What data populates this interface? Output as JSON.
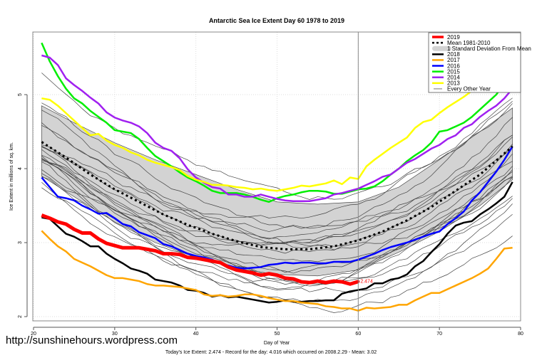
{
  "chart_data": {
    "type": "line",
    "title": "Antarctic Sea Ice Extent Day 60 1978 to 2019",
    "xlabel": "Day of Year",
    "ylabel": "Ice Extent in millions of sq. km.",
    "xlim": [
      20,
      80
    ],
    "ylim": [
      1.95,
      5.8
    ],
    "x_ticks": [
      20,
      30,
      40,
      50,
      60,
      70,
      80
    ],
    "y_ticks": [
      2,
      3,
      4,
      5
    ],
    "grid": true,
    "vline_day": 60,
    "legend_position": "top-right",
    "legend": [
      {
        "label": "2019",
        "color": "#ff0000",
        "style": "thick"
      },
      {
        "label": "Mean 1981-2010",
        "color": "#000000",
        "style": "dashed"
      },
      {
        "label": "1 Standard Deviation From Mean",
        "color": "#d3d3d3",
        "style": "band"
      },
      {
        "label": "2018",
        "color": "#000000",
        "style": "line"
      },
      {
        "label": "2017",
        "color": "#ffa500",
        "style": "line"
      },
      {
        "label": "2016",
        "color": "#0000ff",
        "style": "line"
      },
      {
        "label": "2015",
        "color": "#00ee00",
        "style": "line"
      },
      {
        "label": "2014",
        "color": "#a020f0",
        "style": "line"
      },
      {
        "label": "2013",
        "color": "#ffff00",
        "style": "line"
      },
      {
        "label": "Every Other Year",
        "color": "#555555",
        "style": "thin"
      }
    ],
    "annotation": {
      "text": "2.474",
      "day": 60,
      "value": 2.474,
      "color": "#ff0000"
    },
    "band": {
      "name": "1 Standard Deviation From Mean",
      "x": [
        21,
        25,
        30,
        35,
        40,
        45,
        50,
        55,
        60,
        65,
        70,
        75,
        79
      ],
      "upper": [
        4.85,
        4.62,
        4.35,
        4.12,
        3.92,
        3.72,
        3.55,
        3.52,
        3.55,
        3.75,
        4.12,
        4.5,
        4.82
      ],
      "lower": [
        3.9,
        3.62,
        3.28,
        3.0,
        2.8,
        2.65,
        2.57,
        2.55,
        2.63,
        2.87,
        3.15,
        3.5,
        3.85
      ]
    },
    "series": [
      {
        "name": "Mean 1981-2010",
        "color": "#000000",
        "style": "dashed",
        "x": [
          21,
          24,
          27,
          30,
          33,
          36,
          39,
          42,
          45,
          48,
          51,
          54,
          57,
          60,
          63,
          66,
          69,
          72,
          75,
          79
        ],
        "values": [
          4.36,
          4.15,
          3.92,
          3.72,
          3.55,
          3.38,
          3.24,
          3.12,
          3.02,
          2.94,
          2.91,
          2.91,
          2.95,
          3.03,
          3.15,
          3.3,
          3.48,
          3.7,
          3.92,
          4.3
        ]
      },
      {
        "name": "2018",
        "color": "#000000",
        "style": "line",
        "x": [
          21,
          22,
          23,
          24,
          25,
          26,
          27,
          28,
          29,
          30,
          31,
          32,
          33,
          34,
          35,
          36,
          37,
          38,
          39,
          40,
          41,
          42,
          43,
          44,
          45,
          46,
          47,
          48,
          49,
          50,
          51,
          52,
          53,
          54,
          55,
          56,
          57,
          58,
          59,
          60,
          61,
          62,
          63,
          64,
          65,
          66,
          67,
          68,
          69,
          70,
          71,
          72,
          73,
          74,
          75,
          76,
          77,
          78,
          79
        ],
        "values": [
          3.34,
          3.32,
          3.22,
          3.12,
          3.08,
          3.02,
          2.95,
          2.95,
          2.85,
          2.78,
          2.72,
          2.65,
          2.62,
          2.58,
          2.5,
          2.48,
          2.46,
          2.42,
          2.36,
          2.35,
          2.32,
          2.27,
          2.29,
          2.26,
          2.27,
          2.25,
          2.23,
          2.21,
          2.19,
          2.2,
          2.22,
          2.2,
          2.2,
          2.21,
          2.21,
          2.22,
          2.22,
          2.31,
          2.34,
          2.36,
          2.38,
          2.45,
          2.45,
          2.5,
          2.52,
          2.57,
          2.68,
          2.75,
          2.87,
          2.98,
          3.12,
          3.23,
          3.27,
          3.29,
          3.38,
          3.45,
          3.53,
          3.62,
          3.82
        ]
      },
      {
        "name": "2017",
        "color": "#ffa500",
        "style": "line",
        "x": [
          21,
          22,
          23,
          24,
          25,
          26,
          27,
          28,
          29,
          30,
          31,
          32,
          33,
          34,
          35,
          36,
          37,
          38,
          39,
          40,
          41,
          42,
          43,
          44,
          45,
          46,
          47,
          48,
          49,
          50,
          51,
          52,
          53,
          54,
          55,
          56,
          57,
          58,
          59,
          60,
          61,
          62,
          63,
          64,
          65,
          66,
          67,
          68,
          69,
          70,
          71,
          72,
          73,
          74,
          75,
          76,
          77,
          78,
          79
        ],
        "values": [
          3.16,
          3.05,
          2.95,
          2.88,
          2.78,
          2.73,
          2.68,
          2.62,
          2.56,
          2.52,
          2.52,
          2.5,
          2.48,
          2.44,
          2.42,
          2.42,
          2.41,
          2.4,
          2.38,
          2.36,
          2.3,
          2.28,
          2.29,
          2.27,
          2.28,
          2.3,
          2.3,
          2.28,
          2.25,
          2.23,
          2.21,
          2.21,
          2.19,
          2.18,
          2.17,
          2.14,
          2.13,
          2.11,
          2.11,
          2.08,
          2.12,
          2.11,
          2.12,
          2.13,
          2.16,
          2.16,
          2.22,
          2.27,
          2.32,
          2.32,
          2.37,
          2.42,
          2.47,
          2.52,
          2.58,
          2.65,
          2.78,
          2.92,
          2.93
        ]
      },
      {
        "name": "2016",
        "color": "#0000ff",
        "style": "line",
        "x": [
          21,
          22,
          23,
          24,
          25,
          26,
          27,
          28,
          29,
          30,
          31,
          32,
          33,
          34,
          35,
          36,
          37,
          38,
          39,
          40,
          41,
          42,
          43,
          44,
          45,
          46,
          47,
          48,
          49,
          50,
          51,
          52,
          53,
          54,
          55,
          56,
          57,
          58,
          59,
          60,
          61,
          62,
          63,
          64,
          65,
          66,
          67,
          68,
          69,
          70,
          71,
          72,
          73,
          74,
          75,
          76,
          77,
          78,
          79
        ],
        "values": [
          3.88,
          3.75,
          3.62,
          3.6,
          3.57,
          3.5,
          3.45,
          3.39,
          3.4,
          3.33,
          3.25,
          3.22,
          3.14,
          3.1,
          3.06,
          2.98,
          2.95,
          2.9,
          2.85,
          2.82,
          2.8,
          2.77,
          2.72,
          2.69,
          2.66,
          2.65,
          2.66,
          2.67,
          2.7,
          2.71,
          2.73,
          2.72,
          2.73,
          2.73,
          2.72,
          2.72,
          2.74,
          2.74,
          2.74,
          2.77,
          2.81,
          2.85,
          2.9,
          2.94,
          2.97,
          3.0,
          3.04,
          3.08,
          3.12,
          3.15,
          3.25,
          3.33,
          3.42,
          3.57,
          3.68,
          3.82,
          3.96,
          4.12,
          4.3
        ]
      },
      {
        "name": "2015",
        "color": "#00ee00",
        "style": "line",
        "x": [
          21,
          22,
          23,
          24,
          25,
          26,
          27,
          28,
          29,
          30,
          31,
          32,
          33,
          34,
          35,
          36,
          37,
          38,
          39,
          40,
          41,
          42,
          43,
          44,
          45,
          46,
          47,
          48,
          49,
          50,
          51,
          52,
          53,
          54,
          55,
          56,
          57,
          58,
          59,
          60,
          61,
          62,
          63,
          64,
          65,
          66,
          67,
          68,
          69,
          70,
          71,
          72,
          73,
          74,
          75,
          76,
          77,
          78,
          79
        ],
        "values": [
          5.7,
          5.45,
          5.25,
          5.08,
          4.95,
          4.88,
          4.78,
          4.7,
          4.62,
          4.52,
          4.5,
          4.48,
          4.4,
          4.28,
          4.17,
          4.1,
          4.03,
          3.95,
          3.88,
          3.83,
          3.77,
          3.7,
          3.67,
          3.67,
          3.67,
          3.65,
          3.62,
          3.58,
          3.55,
          3.6,
          3.63,
          3.65,
          3.68,
          3.7,
          3.7,
          3.69,
          3.66,
          3.66,
          3.69,
          3.72,
          3.73,
          3.76,
          3.83,
          3.92,
          4.0,
          4.1,
          4.18,
          4.25,
          4.35,
          4.5,
          4.52,
          4.57,
          4.62,
          4.7,
          4.8,
          4.9,
          5.0,
          5.15,
          5.4
        ]
      },
      {
        "name": "2014",
        "color": "#a020f0",
        "style": "line",
        "x": [
          21,
          22,
          23,
          24,
          25,
          26,
          27,
          28,
          29,
          30,
          31,
          32,
          33,
          34,
          35,
          36,
          37,
          38,
          39,
          40,
          41,
          42,
          43,
          44,
          45,
          46,
          47,
          48,
          49,
          50,
          51,
          52,
          53,
          54,
          55,
          56,
          57,
          58,
          59,
          60,
          61,
          62,
          63,
          64,
          65,
          66,
          67,
          68,
          69,
          70,
          71,
          72,
          73,
          74,
          75,
          76,
          77,
          78,
          79
        ],
        "values": [
          5.53,
          5.5,
          5.4,
          5.22,
          5.13,
          5.05,
          4.96,
          4.88,
          4.76,
          4.69,
          4.65,
          4.62,
          4.57,
          4.48,
          4.35,
          4.28,
          4.24,
          4.14,
          3.99,
          3.88,
          3.81,
          3.75,
          3.73,
          3.65,
          3.65,
          3.62,
          3.62,
          3.65,
          3.62,
          3.59,
          3.57,
          3.56,
          3.56,
          3.56,
          3.58,
          3.6,
          3.65,
          3.67,
          3.7,
          3.73,
          3.78,
          3.83,
          3.89,
          3.92,
          4.0,
          4.08,
          4.13,
          4.2,
          4.27,
          4.32,
          4.4,
          4.45,
          4.55,
          4.6,
          4.7,
          4.78,
          4.85,
          4.95,
          5.08
        ]
      },
      {
        "name": "2013",
        "color": "#ffff00",
        "style": "line",
        "x": [
          21,
          22,
          23,
          24,
          25,
          26,
          27,
          28,
          29,
          30,
          31,
          32,
          33,
          34,
          35,
          36,
          37,
          38,
          39,
          40,
          41,
          42,
          43,
          44,
          45,
          46,
          47,
          48,
          49,
          50,
          51,
          52,
          53,
          54,
          55,
          56,
          57,
          58,
          59,
          60,
          61,
          62,
          63,
          64,
          65,
          66,
          67,
          68,
          69,
          70,
          71,
          72,
          73,
          74,
          75,
          76,
          77,
          78,
          79
        ],
        "values": [
          4.95,
          4.93,
          4.85,
          4.75,
          4.65,
          4.55,
          4.45,
          4.47,
          4.38,
          4.32,
          4.28,
          4.22,
          4.18,
          4.12,
          4.08,
          4.05,
          4.02,
          3.98,
          3.9,
          3.85,
          3.82,
          3.78,
          3.78,
          3.77,
          3.75,
          3.74,
          3.72,
          3.73,
          3.71,
          3.7,
          3.72,
          3.74,
          3.77,
          3.76,
          3.78,
          3.8,
          3.84,
          3.79,
          3.88,
          3.86,
          4.03,
          4.12,
          4.2,
          4.28,
          4.35,
          4.42,
          4.55,
          4.63,
          4.66,
          4.75,
          4.83,
          4.9,
          4.97,
          5.05,
          5.13,
          5.22,
          5.28,
          5.35,
          5.4
        ]
      },
      {
        "name": "2019",
        "color": "#ff0000",
        "style": "thick",
        "x": [
          21,
          22,
          23,
          24,
          25,
          26,
          27,
          28,
          29,
          30,
          31,
          32,
          33,
          34,
          35,
          36,
          37,
          38,
          39,
          40,
          41,
          42,
          43,
          44,
          45,
          46,
          47,
          48,
          49,
          50,
          51,
          52,
          53,
          54,
          55,
          56,
          57,
          58,
          59,
          60
        ],
        "values": [
          3.37,
          3.33,
          3.28,
          3.25,
          3.18,
          3.13,
          3.13,
          3.05,
          2.99,
          2.96,
          2.93,
          2.93,
          2.93,
          2.91,
          2.89,
          2.85,
          2.85,
          2.84,
          2.8,
          2.79,
          2.77,
          2.75,
          2.73,
          2.67,
          2.63,
          2.61,
          2.59,
          2.56,
          2.58,
          2.56,
          2.52,
          2.51,
          2.47,
          2.46,
          2.48,
          2.46,
          2.48,
          2.47,
          2.44,
          2.474
        ]
      }
    ],
    "every_other_year_count": 22
  },
  "watermark": "http://sunshinehours.wordpress.com",
  "footer": "Today's Ice Extent: 2.474  - Record for the day: 4.016 which occurred on 2008.2.29  - Mean: 3.02"
}
